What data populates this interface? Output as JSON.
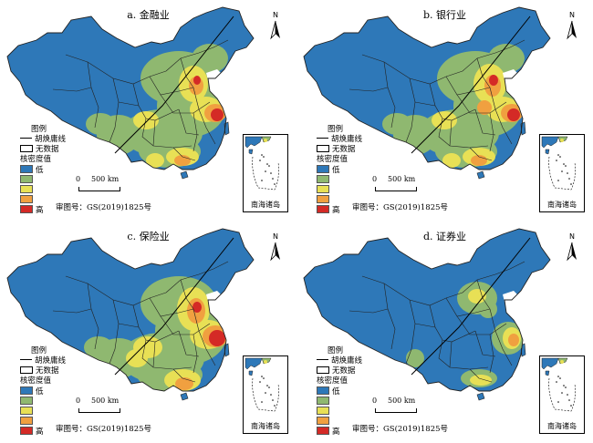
{
  "panels": [
    {
      "id": "a",
      "title": "a. 金融业"
    },
    {
      "id": "b",
      "title": "b. 银行业"
    },
    {
      "id": "c",
      "title": "c. 保险业"
    },
    {
      "id": "d",
      "title": "d. 证券业"
    }
  ],
  "legend": {
    "title": "图例",
    "hu_line": "胡焕庸线",
    "no_data": "无数据",
    "density_title": "核密度值",
    "low": "低",
    "high": "高",
    "classes": [
      "#2e78b8",
      "#8fb870",
      "#e8e055",
      "#f0a040",
      "#d42a26"
    ]
  },
  "scale": {
    "zero": "0",
    "distance": "500 km"
  },
  "north": "N",
  "approval": "审图号：GS(2019)1825号",
  "inset_caption": "南海诸岛",
  "colors": {
    "base": "#2e78b8",
    "border": "#222222",
    "hu_line": "#000000"
  }
}
